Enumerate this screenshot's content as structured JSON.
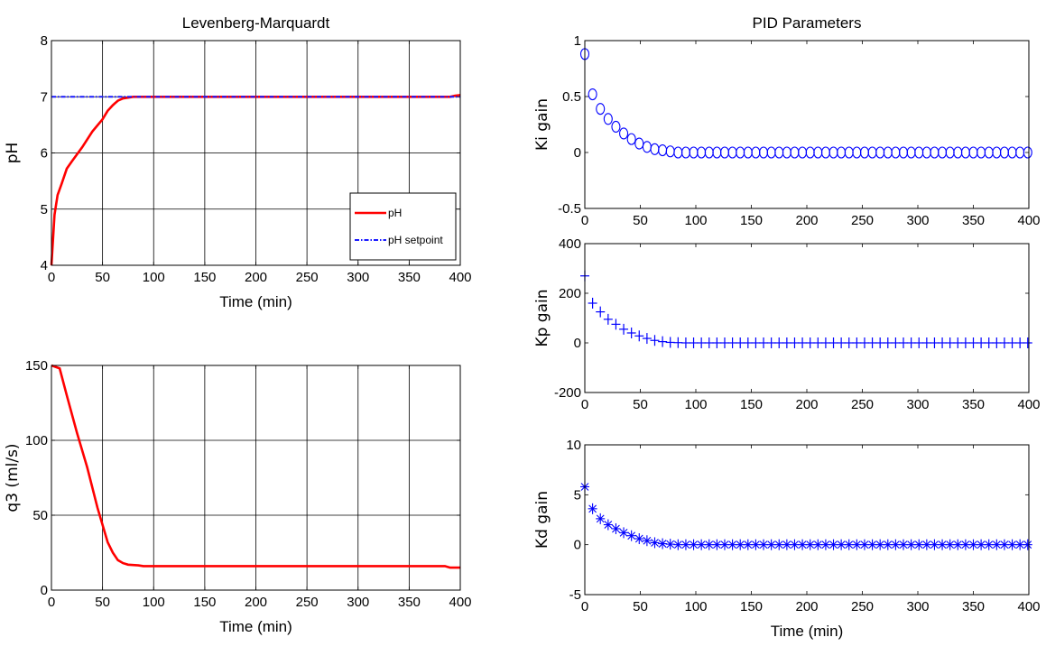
{
  "chart_data": [
    {
      "id": "ph",
      "type": "line",
      "title": "Levenberg-Marquardt",
      "xlabel": "Time (min)",
      "ylabel": "pH",
      "xlim": [
        0,
        400
      ],
      "ylim": [
        4,
        8
      ],
      "xticks": [
        "0",
        "50",
        "100",
        "150",
        "200",
        "250",
        "300",
        "350",
        "400"
      ],
      "yticks": [
        "4",
        "5",
        "6",
        "7",
        "8"
      ],
      "grid": true,
      "legend_position": "lower-right",
      "series": [
        {
          "name": "pH",
          "color": "#ff0000",
          "style": "solid",
          "x": [
            0,
            3,
            6,
            10,
            15,
            20,
            30,
            40,
            50,
            55,
            60,
            65,
            70,
            80,
            90,
            100,
            150,
            200,
            250,
            300,
            350,
            390,
            395,
            400
          ],
          "y": [
            4.0,
            4.9,
            5.25,
            5.45,
            5.72,
            5.85,
            6.1,
            6.38,
            6.6,
            6.75,
            6.85,
            6.93,
            6.97,
            7.0,
            7.0,
            7.0,
            7.0,
            7.0,
            7.0,
            7.0,
            7.0,
            7.0,
            7.02,
            7.03
          ]
        },
        {
          "name": "pH setpoint",
          "color": "#1a1aff",
          "style": "dashdot",
          "x": [
            0,
            400
          ],
          "y": [
            7.0,
            7.0
          ]
        }
      ]
    },
    {
      "id": "q3",
      "type": "line",
      "title": "",
      "xlabel": "Time (min)",
      "ylabel": "q3 (ml/s)",
      "xlim": [
        0,
        400
      ],
      "ylim": [
        0,
        150
      ],
      "xticks": [
        "0",
        "50",
        "100",
        "150",
        "200",
        "250",
        "300",
        "350",
        "400"
      ],
      "yticks": [
        "0",
        "50",
        "100",
        "150"
      ],
      "grid": true,
      "series": [
        {
          "color": "#ff0000",
          "style": "solid",
          "x": [
            0,
            8,
            15,
            25,
            35,
            45,
            55,
            60,
            65,
            70,
            75,
            85,
            90,
            100,
            200,
            300,
            385,
            390,
            400
          ],
          "y": [
            150,
            148,
            130,
            105,
            82,
            55,
            32,
            25,
            20,
            18,
            17,
            16.5,
            16,
            16,
            16,
            16,
            16,
            15,
            15
          ]
        }
      ]
    },
    {
      "id": "ki",
      "type": "scatter",
      "title": "PID Parameters",
      "xlabel": "",
      "ylabel": "Ki gain",
      "xlim": [
        0,
        400
      ],
      "ylim": [
        -0.5,
        1
      ],
      "xticks": [
        "0",
        "50",
        "100",
        "150",
        "200",
        "250",
        "300",
        "350",
        "400"
      ],
      "yticks": [
        "-0.5",
        "0",
        "0.5",
        "1"
      ],
      "grid": false,
      "marker": "o",
      "series": [
        {
          "color": "#0000ff",
          "x": [
            0,
            7,
            14,
            21,
            28,
            35,
            42,
            49,
            56,
            63,
            70,
            77,
            84,
            91,
            98,
            105,
            112,
            119,
            126,
            133,
            140,
            147,
            154,
            161,
            168,
            175,
            182,
            189,
            196,
            203,
            210,
            217,
            224,
            231,
            238,
            245,
            252,
            259,
            266,
            273,
            280,
            287,
            294,
            301,
            308,
            315,
            322,
            329,
            336,
            343,
            350,
            357,
            364,
            371,
            378,
            385,
            392,
            399
          ],
          "y": [
            0.88,
            0.52,
            0.39,
            0.3,
            0.23,
            0.17,
            0.12,
            0.08,
            0.05,
            0.03,
            0.02,
            0.01,
            0,
            0,
            0,
            0,
            0,
            0,
            0,
            0,
            0,
            0,
            0,
            0,
            0,
            0,
            0,
            0,
            0,
            0,
            0,
            0,
            0,
            0,
            0,
            0,
            0,
            0,
            0,
            0,
            0,
            0,
            0,
            0,
            0,
            0,
            0,
            0,
            0,
            0,
            0,
            0,
            0,
            0,
            0,
            0,
            0,
            0
          ]
        }
      ]
    },
    {
      "id": "kp",
      "type": "scatter",
      "title": "",
      "xlabel": "",
      "ylabel": "Kp gain",
      "xlim": [
        0,
        400
      ],
      "ylim": [
        -200,
        400
      ],
      "xticks": [
        "0",
        "50",
        "100",
        "150",
        "200",
        "250",
        "300",
        "350",
        "400"
      ],
      "yticks": [
        "-200",
        "0",
        "200",
        "400"
      ],
      "grid": false,
      "marker": "+",
      "series": [
        {
          "color": "#0000ff",
          "x": [
            0,
            7,
            14,
            21,
            28,
            35,
            42,
            49,
            56,
            63,
            70,
            77,
            84,
            91,
            98,
            105,
            112,
            119,
            126,
            133,
            140,
            147,
            154,
            161,
            168,
            175,
            182,
            189,
            196,
            203,
            210,
            217,
            224,
            231,
            238,
            245,
            252,
            259,
            266,
            273,
            280,
            287,
            294,
            301,
            308,
            315,
            322,
            329,
            336,
            343,
            350,
            357,
            364,
            371,
            378,
            385,
            392,
            399
          ],
          "y": [
            270,
            160,
            125,
            95,
            75,
            55,
            40,
            28,
            18,
            10,
            5,
            2,
            1,
            0,
            0,
            0,
            0,
            0,
            0,
            0,
            0,
            0,
            0,
            0,
            0,
            0,
            0,
            0,
            0,
            0,
            0,
            0,
            0,
            0,
            0,
            0,
            0,
            0,
            0,
            0,
            0,
            0,
            0,
            0,
            0,
            0,
            0,
            0,
            0,
            0,
            0,
            0,
            0,
            0,
            0,
            0,
            0,
            0
          ]
        }
      ]
    },
    {
      "id": "kd",
      "type": "scatter",
      "title": "",
      "xlabel": "Time (min)",
      "ylabel": "Kd gain",
      "xlim": [
        0,
        400
      ],
      "ylim": [
        -5,
        10
      ],
      "xticks": [
        "0",
        "50",
        "100",
        "150",
        "200",
        "250",
        "300",
        "350",
        "400"
      ],
      "yticks": [
        "-5",
        "0",
        "5",
        "10"
      ],
      "grid": false,
      "marker": "*",
      "series": [
        {
          "color": "#0000ff",
          "x": [
            0,
            7,
            14,
            21,
            28,
            35,
            42,
            49,
            56,
            63,
            70,
            77,
            84,
            91,
            98,
            105,
            112,
            119,
            126,
            133,
            140,
            147,
            154,
            161,
            168,
            175,
            182,
            189,
            196,
            203,
            210,
            217,
            224,
            231,
            238,
            245,
            252,
            259,
            266,
            273,
            280,
            287,
            294,
            301,
            308,
            315,
            322,
            329,
            336,
            343,
            350,
            357,
            364,
            371,
            378,
            385,
            392,
            399
          ],
          "y": [
            5.8,
            3.6,
            2.6,
            2.0,
            1.6,
            1.2,
            0.9,
            0.6,
            0.4,
            0.2,
            0.1,
            0.05,
            0,
            0,
            0,
            0,
            0,
            0,
            0,
            0,
            0,
            0,
            0,
            0,
            0,
            0,
            0,
            0,
            0,
            0,
            0,
            0,
            0,
            0,
            0,
            0,
            0,
            0,
            0,
            0,
            0,
            0,
            0,
            0,
            0,
            0,
            0,
            0,
            0,
            0,
            0,
            0,
            0,
            0,
            0,
            0,
            0,
            0
          ]
        }
      ]
    }
  ]
}
